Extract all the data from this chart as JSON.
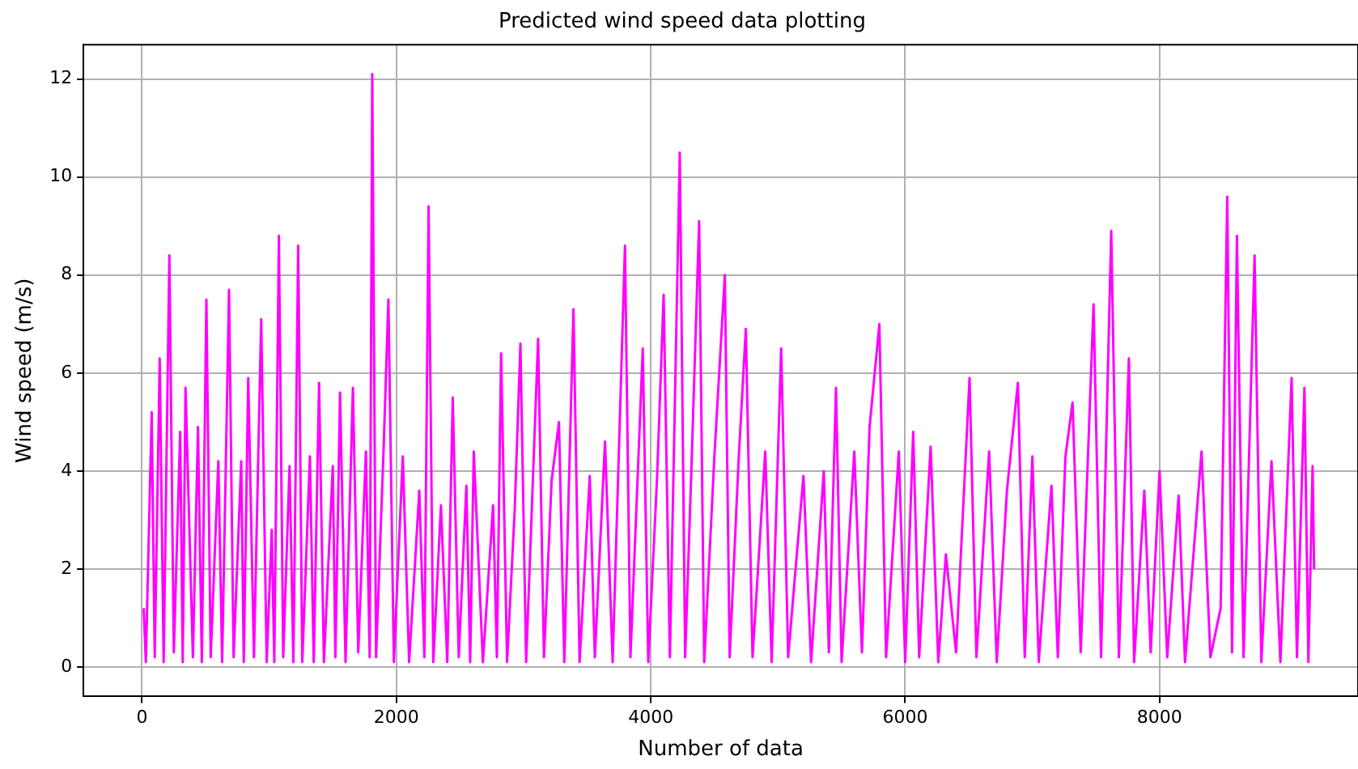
{
  "chart_data": {
    "type": "line",
    "title": "Predicted wind speed data plotting",
    "xlabel": "Number of data",
    "ylabel": "Wind speed (m/s)",
    "x": [
      13,
      30,
      76,
      100,
      139,
      170,
      215,
      250,
      300,
      320,
      342,
      400,
      440,
      470,
      506,
      540,
      600,
      630,
      684,
      720,
      780,
      800,
      835,
      880,
      937,
      980,
      1020,
      1040,
      1076,
      1110,
      1160,
      1190,
      1228,
      1260,
      1320,
      1350,
      1392,
      1430,
      1500,
      1520,
      1557,
      1600,
      1658,
      1700,
      1760,
      1790,
      1810,
      1840,
      1900,
      1937,
      1980,
      2050,
      2100,
      2180,
      2220,
      2253,
      2290,
      2350,
      2400,
      2443,
      2490,
      2550,
      2580,
      2608,
      2680,
      2760,
      2790,
      2823,
      2870,
      2930,
      2975,
      3020,
      3114,
      3160,
      3220,
      3278,
      3320,
      3392,
      3440,
      3520,
      3560,
      3640,
      3700,
      3797,
      3840,
      3937,
      3980,
      4050,
      4101,
      4150,
      4228,
      4270,
      4320,
      4380,
      4420,
      4500,
      4582,
      4620,
      4690,
      4747,
      4800,
      4900,
      4950,
      5025,
      5080,
      5200,
      5260,
      5360,
      5400,
      5456,
      5500,
      5600,
      5660,
      5720,
      5797,
      5850,
      5950,
      6000,
      6063,
      6110,
      6200,
      6260,
      6320,
      6400,
      6506,
      6560,
      6660,
      6720,
      6800,
      6886,
      6940,
      7000,
      7050,
      7150,
      7200,
      7260,
      7316,
      7380,
      7481,
      7540,
      7620,
      7680,
      7759,
      7800,
      7880,
      7930,
      8000,
      8060,
      8150,
      8200,
      8330,
      8400,
      8480,
      8532,
      8570,
      8608,
      8660,
      8747,
      8800,
      8880,
      8950,
      9038,
      9080,
      9139,
      9170,
      9203,
      9215
    ],
    "series": [
      {
        "color": "#ff00ff",
        "values": [
          1.2,
          0.1,
          5.2,
          0.2,
          6.3,
          0.1,
          8.4,
          0.3,
          4.8,
          0.1,
          5.7,
          0.2,
          4.9,
          0.1,
          7.5,
          0.2,
          4.2,
          0.1,
          7.7,
          0.2,
          4.2,
          0.1,
          5.9,
          0.2,
          7.1,
          0.1,
          2.8,
          0.1,
          8.8,
          0.2,
          4.1,
          0.1,
          8.6,
          0.1,
          4.3,
          0.1,
          5.8,
          0.1,
          4.1,
          0.2,
          5.6,
          0.1,
          5.7,
          0.3,
          4.4,
          0.2,
          12.1,
          0.2,
          4.5,
          7.5,
          0.1,
          4.3,
          0.1,
          3.6,
          0.2,
          9.4,
          0.1,
          3.3,
          0.1,
          5.5,
          0.2,
          3.7,
          0.1,
          4.4,
          0.1,
          3.3,
          0.2,
          6.4,
          0.1,
          3.2,
          6.6,
          0.1,
          6.7,
          0.2,
          3.8,
          5.0,
          0.1,
          7.3,
          0.1,
          3.9,
          0.2,
          4.6,
          0.1,
          8.6,
          0.2,
          6.5,
          0.1,
          3.9,
          7.6,
          0.2,
          10.5,
          0.2,
          4.1,
          9.1,
          0.1,
          4.3,
          8.0,
          0.2,
          4.2,
          6.9,
          0.2,
          4.4,
          0.1,
          6.5,
          0.2,
          3.9,
          0.1,
          4.0,
          0.3,
          5.7,
          0.1,
          4.4,
          0.3,
          4.9,
          7.0,
          0.2,
          4.4,
          0.1,
          4.8,
          0.2,
          4.5,
          0.1,
          2.3,
          0.3,
          5.9,
          0.2,
          4.4,
          0.1,
          3.6,
          5.8,
          0.2,
          4.3,
          0.1,
          3.7,
          0.2,
          4.3,
          5.4,
          0.3,
          7.4,
          0.2,
          8.9,
          0.2,
          6.3,
          0.1,
          3.6,
          0.3,
          4.0,
          0.2,
          3.5,
          0.1,
          4.4,
          0.2,
          1.2,
          9.6,
          0.3,
          8.8,
          0.2,
          8.4,
          0.1,
          4.2,
          0.1,
          5.9,
          0.2,
          5.7,
          0.1,
          4.1,
          2.0
        ]
      }
    ],
    "xlim": [
      -460,
      9560
    ],
    "xticks": [
      0,
      2000,
      4000,
      6000,
      8000
    ],
    "ylim": [
      -0.6,
      12.7
    ],
    "yticks": [
      0,
      2,
      4,
      6,
      8,
      10,
      12
    ],
    "grid": true,
    "legend": false
  }
}
